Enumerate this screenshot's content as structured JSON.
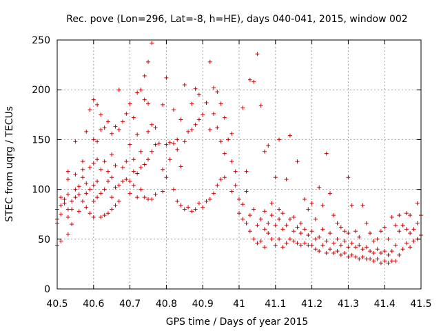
{
  "chart_data": {
    "type": "scatter",
    "title": "Rec. pove (Lon=296, Lat=-8, h=HE), days 040-041, 2015, window 002",
    "xlabel": "GPS time / Days of year 2015",
    "ylabel": "STEC from uqrg / TECUs",
    "xlim": [
      40.5,
      41.5
    ],
    "ylim": [
      0,
      250
    ],
    "x_ticks": [
      40.5,
      40.6,
      40.7,
      40.8,
      40.9,
      41,
      41.1,
      41.2,
      41.3,
      41.4,
      41.5
    ],
    "x_tick_labels": [
      "40.5",
      "40.6",
      "40.7",
      "40.8",
      "40.9",
      "41",
      "41.1",
      "41.2",
      "41.3",
      "41.4",
      "41.5"
    ],
    "y_ticks": [
      0,
      50,
      100,
      150,
      200,
      250
    ],
    "y_tick_labels": [
      "0",
      "50",
      "100",
      "150",
      "200",
      "250"
    ],
    "grid": true,
    "marker": "+",
    "marker_color": "#cc0000",
    "points": [
      [
        40.5,
        44
      ],
      [
        40.51,
        48
      ],
      [
        40.5,
        66
      ],
      [
        40.5,
        70
      ],
      [
        40.51,
        75
      ],
      [
        40.5,
        80
      ],
      [
        40.51,
        84
      ],
      [
        40.52,
        90
      ],
      [
        40.51,
        92
      ],
      [
        40.52,
        86
      ],
      [
        40.53,
        55
      ],
      [
        40.53,
        72
      ],
      [
        40.53,
        80
      ],
      [
        40.53,
        95
      ],
      [
        40.53,
        110
      ],
      [
        40.53,
        118
      ],
      [
        40.54,
        65
      ],
      [
        40.54,
        80
      ],
      [
        40.54,
        88
      ],
      [
        40.55,
        92
      ],
      [
        40.55,
        100
      ],
      [
        40.55,
        115
      ],
      [
        40.55,
        148
      ],
      [
        40.56,
        78
      ],
      [
        40.56,
        95
      ],
      [
        40.56,
        103
      ],
      [
        40.57,
        88
      ],
      [
        40.57,
        112
      ],
      [
        40.57,
        120
      ],
      [
        40.57,
        128
      ],
      [
        40.58,
        82
      ],
      [
        40.58,
        96
      ],
      [
        40.58,
        106
      ],
      [
        40.58,
        158
      ],
      [
        40.59,
        76
      ],
      [
        40.59,
        100
      ],
      [
        40.59,
        122
      ],
      [
        40.59,
        180
      ],
      [
        40.6,
        72
      ],
      [
        40.6,
        88
      ],
      [
        40.6,
        104
      ],
      [
        40.6,
        126
      ],
      [
        40.6,
        150
      ],
      [
        40.6,
        190
      ],
      [
        40.61,
        92
      ],
      [
        40.61,
        108
      ],
      [
        40.61,
        130
      ],
      [
        40.61,
        148
      ],
      [
        40.61,
        185
      ],
      [
        40.62,
        72
      ],
      [
        40.62,
        96
      ],
      [
        40.62,
        120
      ],
      [
        40.62,
        160
      ],
      [
        40.62,
        175
      ],
      [
        40.63,
        74
      ],
      [
        40.63,
        100
      ],
      [
        40.63,
        128
      ],
      [
        40.63,
        162
      ],
      [
        40.64,
        76
      ],
      [
        40.64,
        108
      ],
      [
        40.64,
        118
      ],
      [
        40.64,
        168
      ],
      [
        40.65,
        80
      ],
      [
        40.65,
        92
      ],
      [
        40.65,
        112
      ],
      [
        40.65,
        135
      ],
      [
        40.65,
        156
      ],
      [
        40.66,
        84
      ],
      [
        40.66,
        102
      ],
      [
        40.66,
        124
      ],
      [
        40.66,
        163
      ],
      [
        40.67,
        88
      ],
      [
        40.67,
        104
      ],
      [
        40.67,
        160
      ],
      [
        40.67,
        200
      ],
      [
        40.68,
        108
      ],
      [
        40.68,
        122
      ],
      [
        40.68,
        168
      ],
      [
        40.69,
        110
      ],
      [
        40.69,
        128
      ],
      [
        40.69,
        176
      ],
      [
        40.7,
        96
      ],
      [
        40.7,
        108
      ],
      [
        40.7,
        145
      ],
      [
        40.7,
        186
      ],
      [
        40.71,
        104
      ],
      [
        40.71,
        118
      ],
      [
        40.71,
        130
      ],
      [
        40.71,
        172
      ],
      [
        40.72,
        92
      ],
      [
        40.72,
        116
      ],
      [
        40.72,
        155
      ],
      [
        40.72,
        197
      ],
      [
        40.73,
        100
      ],
      [
        40.73,
        122
      ],
      [
        40.73,
        138
      ],
      [
        40.73,
        200
      ],
      [
        40.74,
        92
      ],
      [
        40.74,
        125
      ],
      [
        40.74,
        190
      ],
      [
        40.74,
        214
      ],
      [
        40.75,
        90
      ],
      [
        40.75,
        130
      ],
      [
        40.75,
        158
      ],
      [
        40.75,
        186
      ],
      [
        40.75,
        228
      ],
      [
        40.76,
        90
      ],
      [
        40.76,
        138
      ],
      [
        40.76,
        165
      ],
      [
        40.76,
        247
      ],
      [
        40.77,
        95
      ],
      [
        40.77,
        145
      ],
      [
        40.77,
        162
      ],
      [
        40.78,
        146
      ],
      [
        40.79,
        98
      ],
      [
        40.79,
        120
      ],
      [
        40.79,
        185
      ],
      [
        40.8,
        112
      ],
      [
        40.8,
        145
      ],
      [
        40.8,
        212
      ],
      [
        40.81,
        130
      ],
      [
        40.81,
        147
      ],
      [
        40.82,
        100
      ],
      [
        40.82,
        146
      ],
      [
        40.82,
        180
      ],
      [
        40.83,
        88
      ],
      [
        40.83,
        140
      ],
      [
        40.83,
        150
      ],
      [
        40.84,
        84
      ],
      [
        40.84,
        123
      ],
      [
        40.84,
        170
      ],
      [
        40.85,
        80
      ],
      [
        40.85,
        148
      ],
      [
        40.85,
        205
      ],
      [
        40.86,
        82
      ],
      [
        40.86,
        158
      ],
      [
        40.87,
        78
      ],
      [
        40.87,
        160
      ],
      [
        40.87,
        186
      ],
      [
        40.88,
        80
      ],
      [
        40.88,
        165
      ],
      [
        40.88,
        201
      ],
      [
        40.89,
        86
      ],
      [
        40.89,
        170
      ],
      [
        40.89,
        195
      ],
      [
        40.9,
        82
      ],
      [
        40.9,
        175
      ],
      [
        40.91,
        88
      ],
      [
        40.91,
        187
      ],
      [
        40.92,
        90
      ],
      [
        40.92,
        160
      ],
      [
        40.92,
        228
      ],
      [
        40.93,
        96
      ],
      [
        40.93,
        176
      ],
      [
        40.93,
        202
      ],
      [
        40.94,
        104
      ],
      [
        40.94,
        162
      ],
      [
        40.94,
        198
      ],
      [
        40.95,
        110
      ],
      [
        40.95,
        148
      ],
      [
        40.95,
        186
      ],
      [
        40.96,
        112
      ],
      [
        40.96,
        136
      ],
      [
        40.96,
        172
      ],
      [
        40.97,
        150
      ],
      [
        40.98,
        98
      ],
      [
        40.98,
        128
      ],
      [
        40.98,
        156
      ],
      [
        40.99,
        104
      ],
      [
        40.99,
        118
      ],
      [
        41.0,
        76
      ],
      [
        41.0,
        90
      ],
      [
        41.01,
        70
      ],
      [
        41.01,
        85
      ],
      [
        41.01,
        182
      ],
      [
        41.02,
        66
      ],
      [
        41.02,
        98
      ],
      [
        41.02,
        118
      ],
      [
        41.03,
        58
      ],
      [
        41.03,
        74
      ],
      [
        41.03,
        210
      ],
      [
        41.04,
        50
      ],
      [
        41.04,
        80
      ],
      [
        41.04,
        208
      ],
      [
        41.05,
        46
      ],
      [
        41.05,
        64
      ],
      [
        41.05,
        236
      ],
      [
        41.06,
        48
      ],
      [
        41.06,
        70
      ],
      [
        41.06,
        184
      ],
      [
        41.07,
        42
      ],
      [
        41.07,
        60
      ],
      [
        41.07,
        78
      ],
      [
        41.07,
        138
      ],
      [
        41.08,
        56
      ],
      [
        41.08,
        66
      ],
      [
        41.08,
        144
      ],
      [
        41.09,
        50
      ],
      [
        41.09,
        74
      ],
      [
        41.09,
        86
      ],
      [
        41.1,
        44
      ],
      [
        41.1,
        64
      ],
      [
        41.1,
        112
      ],
      [
        41.11,
        50
      ],
      [
        41.11,
        70
      ],
      [
        41.11,
        80
      ],
      [
        41.11,
        150
      ],
      [
        41.12,
        42
      ],
      [
        41.12,
        60
      ],
      [
        41.12,
        76
      ],
      [
        41.13,
        46
      ],
      [
        41.13,
        64
      ],
      [
        41.13,
        110
      ],
      [
        41.14,
        50
      ],
      [
        41.14,
        70
      ],
      [
        41.14,
        154
      ],
      [
        41.15,
        48
      ],
      [
        41.15,
        58
      ],
      [
        41.15,
        72
      ],
      [
        41.16,
        46
      ],
      [
        41.16,
        62
      ],
      [
        41.16,
        128
      ],
      [
        41.17,
        44
      ],
      [
        41.17,
        56
      ],
      [
        41.17,
        66
      ],
      [
        41.18,
        46
      ],
      [
        41.18,
        60
      ],
      [
        41.18,
        90
      ],
      [
        41.19,
        44
      ],
      [
        41.19,
        54
      ],
      [
        41.19,
        80
      ],
      [
        41.2,
        44
      ],
      [
        41.2,
        58
      ],
      [
        41.2,
        86
      ],
      [
        41.21,
        40
      ],
      [
        41.21,
        50
      ],
      [
        41.21,
        70
      ],
      [
        41.22,
        38
      ],
      [
        41.22,
        52
      ],
      [
        41.22,
        102
      ],
      [
        41.23,
        44
      ],
      [
        41.23,
        60
      ],
      [
        41.23,
        84
      ],
      [
        41.24,
        36
      ],
      [
        41.24,
        48
      ],
      [
        41.24,
        136
      ],
      [
        41.25,
        40
      ],
      [
        41.25,
        56
      ],
      [
        41.25,
        96
      ],
      [
        41.26,
        36
      ],
      [
        41.26,
        46
      ],
      [
        41.26,
        74
      ],
      [
        41.27,
        38
      ],
      [
        41.27,
        50
      ],
      [
        41.27,
        66
      ],
      [
        41.28,
        34
      ],
      [
        41.28,
        44
      ],
      [
        41.28,
        62
      ],
      [
        41.29,
        36
      ],
      [
        41.29,
        48
      ],
      [
        41.29,
        58
      ],
      [
        41.3,
        32
      ],
      [
        41.3,
        42
      ],
      [
        41.3,
        56
      ],
      [
        41.3,
        112
      ],
      [
        41.31,
        34
      ],
      [
        41.31,
        46
      ],
      [
        41.31,
        84
      ],
      [
        41.32,
        32
      ],
      [
        41.32,
        42
      ],
      [
        41.32,
        58
      ],
      [
        41.33,
        30
      ],
      [
        41.33,
        44
      ],
      [
        41.33,
        52
      ],
      [
        41.34,
        32
      ],
      [
        41.34,
        40
      ],
      [
        41.34,
        84
      ],
      [
        41.35,
        30
      ],
      [
        41.35,
        42
      ],
      [
        41.35,
        66
      ],
      [
        41.36,
        30
      ],
      [
        41.36,
        38
      ],
      [
        41.36,
        56
      ],
      [
        41.37,
        28
      ],
      [
        41.37,
        36
      ],
      [
        41.37,
        48
      ],
      [
        41.38,
        30
      ],
      [
        41.38,
        40
      ],
      [
        41.38,
        50
      ],
      [
        41.39,
        26
      ],
      [
        41.39,
        36
      ],
      [
        41.39,
        58
      ],
      [
        41.4,
        28
      ],
      [
        41.4,
        38
      ],
      [
        41.4,
        62
      ],
      [
        41.41,
        26
      ],
      [
        41.41,
        34
      ],
      [
        41.41,
        50
      ],
      [
        41.42,
        28
      ],
      [
        41.42,
        38
      ],
      [
        41.42,
        72
      ],
      [
        41.43,
        28
      ],
      [
        41.43,
        44
      ],
      [
        41.43,
        64
      ],
      [
        41.44,
        34
      ],
      [
        41.44,
        58
      ],
      [
        41.44,
        74
      ],
      [
        41.45,
        40
      ],
      [
        41.45,
        64
      ],
      [
        41.46,
        46
      ],
      [
        41.46,
        60
      ],
      [
        41.46,
        76
      ],
      [
        41.47,
        42
      ],
      [
        41.47,
        56
      ],
      [
        41.47,
        74
      ],
      [
        41.48,
        48
      ],
      [
        41.48,
        60
      ],
      [
        41.49,
        50
      ],
      [
        41.49,
        66
      ],
      [
        41.49,
        86
      ],
      [
        41.5,
        54
      ],
      [
        41.5,
        74
      ]
    ]
  }
}
